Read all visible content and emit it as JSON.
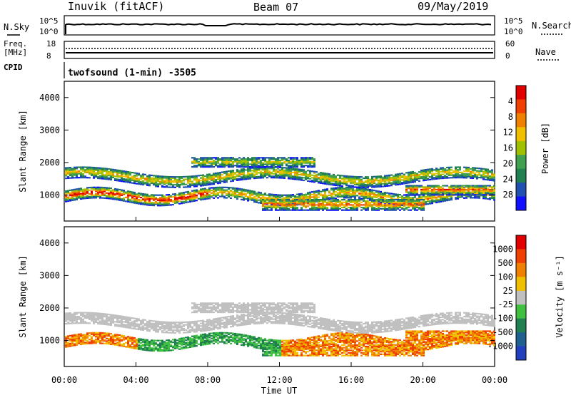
{
  "header": {
    "station": "Inuvik (fitACF)",
    "beam": "Beam 07",
    "date": "09/May/2019"
  },
  "noise_panel": {
    "left_label": "N.Sky",
    "right_label": "N.Search",
    "left_ticks": [
      "10^5",
      "10^0"
    ],
    "right_ticks": [
      "10^5",
      "10^0"
    ]
  },
  "freq_panel": {
    "left_label_1": "Freq.",
    "left_label_2": "[MHz]",
    "right_label": "Nave",
    "left_ticks": [
      "18",
      "8"
    ],
    "right_ticks": [
      "60",
      "0"
    ]
  },
  "cpid_panel": {
    "label": "CPID",
    "value": "twofsound (1-min) -3505"
  },
  "axes": {
    "ylabel": "Slant Range [km]",
    "xlabel": "Time UT",
    "yticks": [
      "1000",
      "2000",
      "3000",
      "4000"
    ],
    "xticks": [
      "00:00",
      "04:00",
      "08:00",
      "12:00",
      "16:00",
      "20:00",
      "00:00"
    ]
  },
  "chart_data": [
    {
      "type": "heatmap",
      "title": "",
      "xlabel": "",
      "ylabel": "Slant Range [km]",
      "x_range_hours": [
        0,
        24
      ],
      "y_range_km": [
        200,
        4500
      ],
      "colorbar": {
        "label": "Power [dB]",
        "ticks": [
          "4",
          "8",
          "12",
          "16",
          "20",
          "24",
          "28"
        ],
        "colors": [
          "#1010ff",
          "#2050b0",
          "#208050",
          "#40a050",
          "#a0c000",
          "#f0c000",
          "#f08000",
          "#f04000",
          "#e00000"
        ]
      }
    },
    {
      "type": "heatmap",
      "title": "",
      "xlabel": "Time UT",
      "ylabel": "Slant Range [km]",
      "x_range_hours": [
        0,
        24
      ],
      "y_range_km": [
        200,
        4500
      ],
      "colorbar": {
        "label": "Velocity [m s⁻¹]",
        "ticks": [
          "1000",
          "500",
          "100",
          "25",
          "-25",
          "-100",
          "-500",
          "-1000"
        ],
        "colors": [
          "#2040c0",
          "#206090",
          "#208050",
          "#40c040",
          "#c0c0c0",
          "#f0c000",
          "#f08000",
          "#f04000",
          "#e00000"
        ]
      }
    }
  ]
}
